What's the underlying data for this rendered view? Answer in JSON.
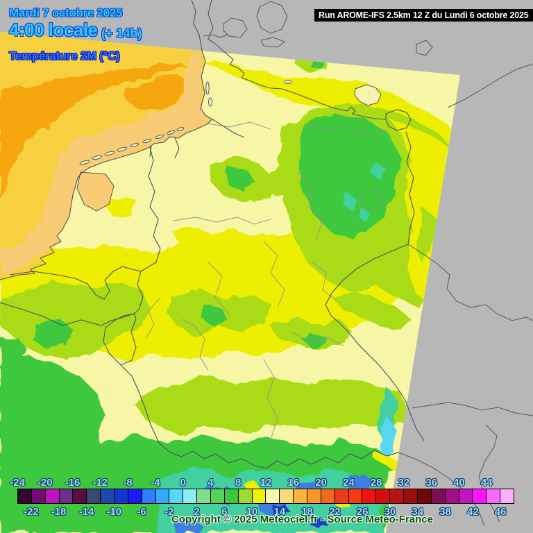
{
  "header": {
    "date_line": "Mardi 7 octobre 2025",
    "time_line": "4:00 locale",
    "offset_label": "(+ 14h)",
    "param_label": "Température 2M (°C)",
    "run_label": "Run AROME-IFS 2.5km 12 Z du Lundi 6 octobre 2025"
  },
  "copyright": "Copyright © 2025 Meteociel.fr - Source Meteo-France",
  "colors": {
    "title_cyan": "#2dc9fe",
    "title_outline_blue": "#0a3fd0",
    "param_blue": "#3b6cff",
    "run_bar_bg": "#000000",
    "run_bar_fg": "#ffffff",
    "outside_domain_gray": "#b7b7b7",
    "scale_label_fill": "#a5d8f5",
    "scale_label_outline": "#15406b",
    "copyright_green": "#0a520a",
    "sea_gold": "#f7d040",
    "sea_orange": "#f5a70b",
    "sea_coastal_peach": "#f8cb74",
    "land_cream": "#f6f6a6",
    "land_yellow": "#eeee00",
    "land_chartreuse": "#a9dc12",
    "land_green": "#3ec83e",
    "land_teal": "#43d0a0",
    "alps_cyan": "#55d8f0",
    "alps_blue": "#3e7ee2",
    "alps_navy": "#1f3fc8"
  },
  "scale": {
    "unit": "°C",
    "range": {
      "min": -24,
      "max": 48,
      "step_per_cell": 2
    },
    "top_labels": [
      "-24",
      "-20",
      "-16",
      "-12",
      "-8",
      "-4",
      "0",
      "4",
      "8",
      "12",
      "16",
      "20",
      "24",
      "28",
      "32",
      "36",
      "40",
      "44"
    ],
    "bottom_labels": [
      "-22",
      "-18",
      "-14",
      "-10",
      "-6",
      "-2",
      "2",
      "6",
      "10",
      "14",
      "18",
      "22",
      "26",
      "30",
      "34",
      "38",
      "42",
      "46"
    ],
    "cells": [
      "#33082e",
      "#740b74",
      "#c011c0",
      "#6e2f8a",
      "#5e0c3f",
      "#3a476e",
      "#1e49ac",
      "#1632d2",
      "#1b1bfa",
      "#2e7efd",
      "#2fabff",
      "#59d7f7",
      "#8ceef2",
      "#7edf8b",
      "#58d358",
      "#3cc93c",
      "#a2d832",
      "#f2f200",
      "#f7f7ad",
      "#fbd976",
      "#fbb43c",
      "#fa9727",
      "#f4691d",
      "#ec3b1b",
      "#fb3a0b",
      "#f01111",
      "#d40e0e",
      "#b81212",
      "#9c0d0d",
      "#6f0909",
      "#7e0d55",
      "#a30f88",
      "#c316c3",
      "#fa14fa",
      "#fa69fa",
      "#fbaefb"
    ]
  }
}
